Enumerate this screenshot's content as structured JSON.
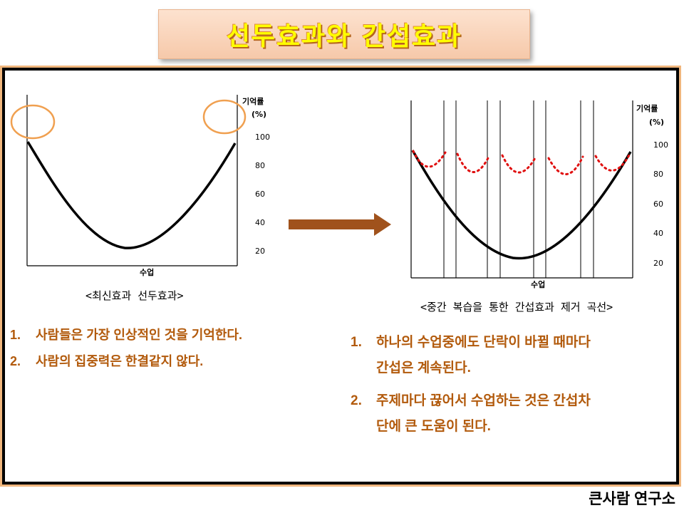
{
  "title": "선두효과와 간섭효과",
  "left_chart": {
    "ylabel": "기억률",
    "yunit": "(%)",
    "yticks": [
      "100",
      "80",
      "60",
      "40",
      "20"
    ],
    "xlabel": "수업",
    "caption": "<최신효과 선두효과>"
  },
  "right_chart": {
    "ylabel": "기억률",
    "yunit": "(%)",
    "yticks": [
      "100",
      "80",
      "60",
      "40",
      "20"
    ],
    "xlabel": "수업",
    "caption": "<중간 복습을 통한 간섭효과 제거 곡선>"
  },
  "left_list": [
    {
      "num": "1.",
      "text": "사람들은 가장 인상적인 것을 기억한다."
    },
    {
      "num": "2.",
      "text": "사람의 집중력은 한결같지 않다."
    }
  ],
  "right_list": [
    {
      "num": "1.",
      "line1": "하나의 수업중에도 단락이 바뀔 때마다",
      "line2": "간섭은 계속된다."
    },
    {
      "num": "2.",
      "line1": "주제마다 끊어서 수업하는 것은 간섭차",
      "line2": "단에 큰 도움이 된다."
    }
  ],
  "footer": "큰사람 연구소",
  "colors": {
    "accent": "#b25a0c",
    "arrow": "#a0521c",
    "circle": "#f0a050",
    "dots": "#e01010",
    "title_text": "#ffff00"
  }
}
